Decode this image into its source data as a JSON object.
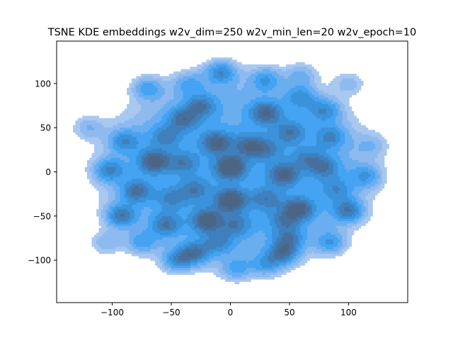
{
  "colors": {
    "background": "#ffffff",
    "axes_frame": "#000000",
    "kde_levels": [
      "#a9c8ef",
      "#8fbaef",
      "#6aaef0",
      "#44a3f2",
      "#3a92da",
      "#3f7fbb",
      "#466f9d",
      "#4b6584"
    ]
  },
  "chart_data": {
    "type": "kde_contour",
    "title": "TSNE KDE embeddings w2v_dim=250 w2v_min_len=20 w2v_epoch=10",
    "xlabel": "",
    "ylabel": "",
    "xlim": [
      -147,
      150
    ],
    "ylim": [
      -148,
      148
    ],
    "x_ticks": [
      -100,
      -50,
      0,
      50,
      100
    ],
    "y_ticks": [
      -100,
      -50,
      0,
      50,
      100
    ],
    "x_tick_labels": [
      "−100",
      "−50",
      "0",
      "50",
      "100"
    ],
    "y_tick_labels": [
      "−100",
      "−50",
      "0",
      "50",
      "100"
    ],
    "grid": false,
    "legend": "none",
    "filled": true,
    "levels": 8,
    "density_hotspots": [
      {
        "x": 0,
        "y": 5,
        "peak": 1.0
      },
      {
        "x": 0,
        "y": -32,
        "peak": 0.95
      },
      {
        "x": -12,
        "y": 33,
        "peak": 0.75
      },
      {
        "x": -20,
        "y": -55,
        "peak": 0.85
      },
      {
        "x": -65,
        "y": 12,
        "peak": 0.85
      },
      {
        "x": -93,
        "y": -50,
        "peak": 0.85
      },
      {
        "x": 45,
        "y": -92,
        "peak": 0.8
      },
      {
        "x": 100,
        "y": -44,
        "peak": 0.8
      },
      {
        "x": 58,
        "y": -42,
        "peak": 0.8
      },
      {
        "x": 45,
        "y": -3,
        "peak": 0.75
      },
      {
        "x": 30,
        "y": 67,
        "peak": 0.75
      },
      {
        "x": -8,
        "y": 113,
        "peak": 0.75
      },
      {
        "x": -103,
        "y": 2,
        "peak": 0.7
      },
      {
        "x": -80,
        "y": -22,
        "peak": 0.7
      },
      {
        "x": -45,
        "y": -100,
        "peak": 0.7
      },
      {
        "x": -30,
        "y": -92,
        "peak": 0.75
      },
      {
        "x": -55,
        "y": -60,
        "peak": 0.65
      },
      {
        "x": -90,
        "y": 35,
        "peak": 0.6
      },
      {
        "x": -40,
        "y": 60,
        "peak": 0.65
      },
      {
        "x": -25,
        "y": 75,
        "peak": 0.6
      },
      {
        "x": 15,
        "y": 30,
        "peak": 0.6
      },
      {
        "x": 50,
        "y": 45,
        "peak": 0.55
      },
      {
        "x": 80,
        "y": 70,
        "peak": 0.6
      },
      {
        "x": 85,
        "y": 40,
        "peak": 0.55
      },
      {
        "x": 80,
        "y": 5,
        "peak": 0.55
      },
      {
        "x": 115,
        "y": -5,
        "peak": 0.55
      },
      {
        "x": 60,
        "y": 85,
        "peak": 0.55
      },
      {
        "x": 50,
        "y": -75,
        "peak": 0.55
      },
      {
        "x": 85,
        "y": -80,
        "peak": 0.6
      },
      {
        "x": 30,
        "y": -105,
        "peak": 0.55
      },
      {
        "x": 5,
        "y": -110,
        "peak": 0.5
      },
      {
        "x": -10,
        "y": -80,
        "peak": 0.5
      },
      {
        "x": -75,
        "y": -80,
        "peak": 0.55
      },
      {
        "x": -70,
        "y": 95,
        "peak": 0.6
      },
      {
        "x": -35,
        "y": 100,
        "peak": 0.45
      },
      {
        "x": 30,
        "y": 105,
        "peak": 0.55
      },
      {
        "x": 5,
        "y": -60,
        "peak": 0.5
      },
      {
        "x": 30,
        "y": -30,
        "peak": 0.5
      },
      {
        "x": 30,
        "y": 25,
        "peak": 0.45
      },
      {
        "x": -40,
        "y": 10,
        "peak": 0.5
      },
      {
        "x": -30,
        "y": -20,
        "peak": 0.5
      },
      {
        "x": -120,
        "y": 50,
        "peak": 0.4
      },
      {
        "x": 100,
        "y": 100,
        "peak": 0.35
      },
      {
        "x": 120,
        "y": 30,
        "peak": 0.3
      },
      {
        "x": 65,
        "y": 15,
        "peak": 0.45
      },
      {
        "x": 90,
        "y": -20,
        "peak": 0.45
      },
      {
        "x": -105,
        "y": -80,
        "peak": 0.4
      },
      {
        "x": -55,
        "y": 40,
        "peak": 0.5
      },
      {
        "x": 60,
        "y": 110,
        "peak": 0.4
      },
      {
        "x": -50,
        "y": -30,
        "peak": 0.45
      },
      {
        "x": 45,
        "y": -55,
        "peak": 0.45
      }
    ]
  }
}
